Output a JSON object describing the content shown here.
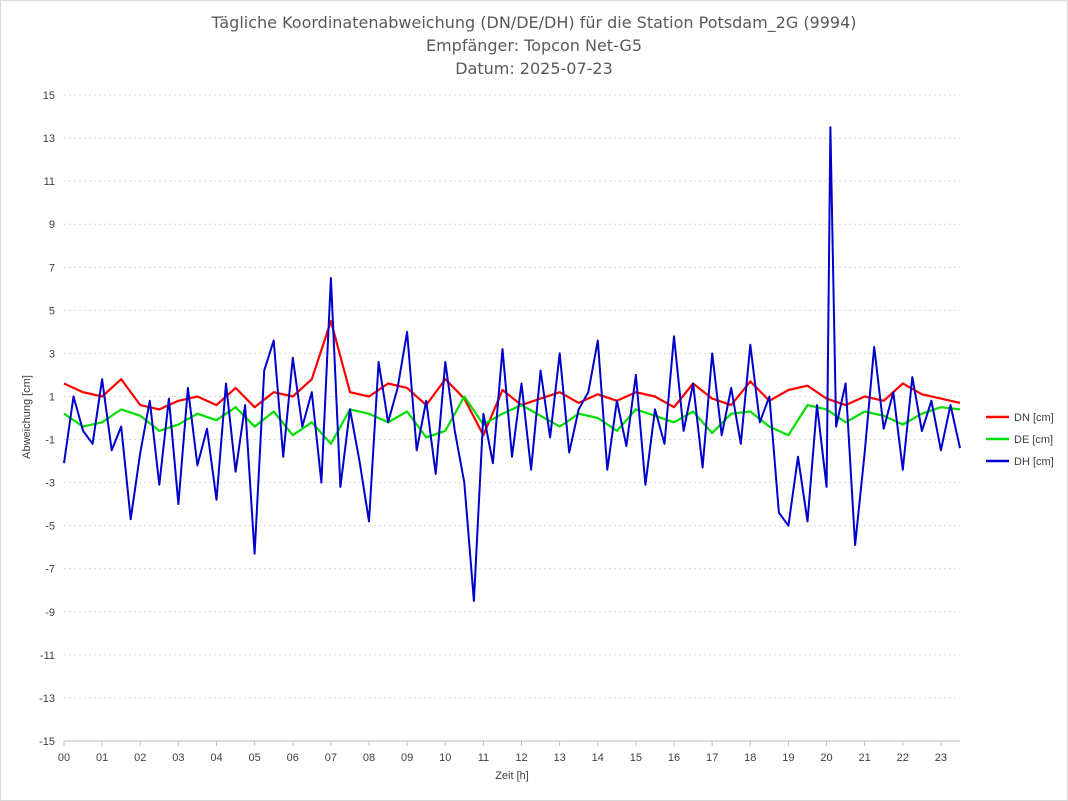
{
  "chart_data": {
    "type": "line",
    "title_lines": [
      "Tägliche Koordinatenabweichung (DN/DE/DH) für die Station Potsdam_2G (9994)",
      "Empfänger: Topcon Net-G5",
      "Datum: 2025-07-23"
    ],
    "xlabel": "Zeit [h]",
    "ylabel": "Abweichung [cm]",
    "xlim": [
      0,
      23.5
    ],
    "ylim": [
      -15,
      15
    ],
    "x_tick_labels": [
      "00",
      "01",
      "02",
      "03",
      "04",
      "05",
      "06",
      "07",
      "08",
      "09",
      "10",
      "11",
      "12",
      "13",
      "14",
      "15",
      "16",
      "17",
      "18",
      "19",
      "20",
      "21",
      "22",
      "23"
    ],
    "y_ticks": [
      15,
      13,
      11,
      9,
      7,
      5,
      3,
      1,
      -1,
      -3,
      -5,
      -7,
      -9,
      -11,
      -13,
      -15
    ],
    "grid": "horizontal dotted",
    "legend_position": "right",
    "colors": {
      "DN": "#ff0000",
      "DE": "#00e000",
      "DH": "#0000cc"
    },
    "series": [
      {
        "name": "DN [cm]",
        "x": [
          0,
          0.5,
          1,
          1.5,
          2,
          2.5,
          3,
          3.5,
          4,
          4.5,
          5,
          5.5,
          6,
          6.5,
          7,
          7.5,
          8,
          8.5,
          9,
          9.5,
          10,
          10.5,
          11,
          11.5,
          12,
          12.5,
          13,
          13.5,
          14,
          14.5,
          15,
          15.5,
          16,
          16.5,
          17,
          17.5,
          18,
          18.5,
          19,
          19.5,
          20,
          20.5,
          21,
          21.5,
          22,
          22.5,
          23,
          23.5
        ],
        "y": [
          1.6,
          1.2,
          1.0,
          1.8,
          0.6,
          0.4,
          0.8,
          1.0,
          0.6,
          1.4,
          0.5,
          1.2,
          1.0,
          1.8,
          4.5,
          1.2,
          1.0,
          1.6,
          1.4,
          0.6,
          1.8,
          0.9,
          -0.8,
          1.3,
          0.6,
          0.9,
          1.2,
          0.7,
          1.1,
          0.8,
          1.2,
          1.0,
          0.5,
          1.6,
          0.9,
          0.6,
          1.7,
          0.8,
          1.3,
          1.5,
          0.9,
          0.6,
          1.0,
          0.8,
          1.6,
          1.1,
          0.9,
          0.7
        ]
      },
      {
        "name": "DE [cm]",
        "x": [
          0,
          0.5,
          1,
          1.5,
          2,
          2.5,
          3,
          3.5,
          4,
          4.5,
          5,
          5.5,
          6,
          6.5,
          7,
          7.5,
          8,
          8.5,
          9,
          9.5,
          10,
          10.5,
          11,
          11.5,
          12,
          12.5,
          13,
          13.5,
          14,
          14.5,
          15,
          15.5,
          16,
          16.5,
          17,
          17.5,
          18,
          18.5,
          19,
          19.5,
          20,
          20.5,
          21,
          21.5,
          22,
          22.5,
          23,
          23.5
        ],
        "y": [
          0.2,
          -0.4,
          -0.2,
          0.4,
          0.1,
          -0.6,
          -0.3,
          0.2,
          -0.1,
          0.5,
          -0.4,
          0.3,
          -0.8,
          -0.2,
          -1.2,
          0.4,
          0.2,
          -0.2,
          0.3,
          -0.9,
          -0.6,
          1.0,
          -0.3,
          0.2,
          0.6,
          0.1,
          -0.4,
          0.2,
          0.0,
          -0.6,
          0.4,
          0.1,
          -0.2,
          0.3,
          -0.7,
          0.2,
          0.3,
          -0.4,
          -0.8,
          0.6,
          0.4,
          -0.2,
          0.3,
          0.1,
          -0.3,
          0.2,
          0.5,
          0.4
        ]
      },
      {
        "name": "DH [cm]",
        "x": [
          0,
          0.25,
          0.5,
          0.75,
          1,
          1.25,
          1.5,
          1.75,
          2,
          2.25,
          2.5,
          2.75,
          3,
          3.25,
          3.5,
          3.75,
          4,
          4.25,
          4.5,
          4.75,
          5,
          5.25,
          5.5,
          5.75,
          6,
          6.25,
          6.5,
          6.75,
          7,
          7.25,
          7.5,
          7.75,
          8,
          8.25,
          8.5,
          8.75,
          9,
          9.25,
          9.5,
          9.75,
          10,
          10.25,
          10.5,
          10.75,
          11,
          11.25,
          11.5,
          11.75,
          12,
          12.25,
          12.5,
          12.75,
          13,
          13.25,
          13.5,
          13.75,
          14,
          14.25,
          14.5,
          14.75,
          15,
          15.25,
          15.5,
          15.75,
          16,
          16.25,
          16.5,
          16.75,
          17,
          17.25,
          17.5,
          17.75,
          18,
          18.25,
          18.5,
          18.75,
          19,
          19.25,
          19.5,
          19.75,
          20,
          20.1,
          20.25,
          20.5,
          20.75,
          21,
          21.25,
          21.5,
          21.75,
          22,
          22.25,
          22.5,
          22.75,
          23,
          23.25,
          23.5
        ],
        "y": [
          -2.1,
          1.0,
          -0.6,
          -1.2,
          1.8,
          -1.5,
          -0.4,
          -4.7,
          -1.6,
          0.8,
          -3.1,
          0.9,
          -4.0,
          1.4,
          -2.2,
          -0.5,
          -3.8,
          1.6,
          -2.5,
          0.6,
          -6.3,
          2.2,
          3.6,
          -1.8,
          2.8,
          -0.4,
          1.2,
          -3.0,
          6.5,
          -3.2,
          0.4,
          -2.0,
          -4.8,
          2.6,
          -0.2,
          1.4,
          4.0,
          -1.5,
          0.8,
          -2.6,
          2.6,
          -0.6,
          -3.0,
          -8.5,
          0.2,
          -2.1,
          3.2,
          -1.8,
          1.6,
          -2.4,
          2.2,
          -0.9,
          3.0,
          -1.6,
          0.4,
          1.2,
          3.6,
          -2.4,
          0.8,
          -1.3,
          2.0,
          -3.1,
          0.4,
          -1.2,
          3.8,
          -0.6,
          1.6,
          -2.3,
          3.0,
          -0.8,
          1.4,
          -1.2,
          3.4,
          -0.2,
          1.0,
          -4.4,
          -5.0,
          -1.8,
          -4.8,
          0.6,
          -3.2,
          13.5,
          -0.4,
          1.6,
          -5.9,
          -1.6,
          3.3,
          -0.5,
          1.2,
          -2.4,
          1.9,
          -0.6,
          0.8,
          -1.5,
          0.6,
          -1.4
        ]
      }
    ]
  }
}
